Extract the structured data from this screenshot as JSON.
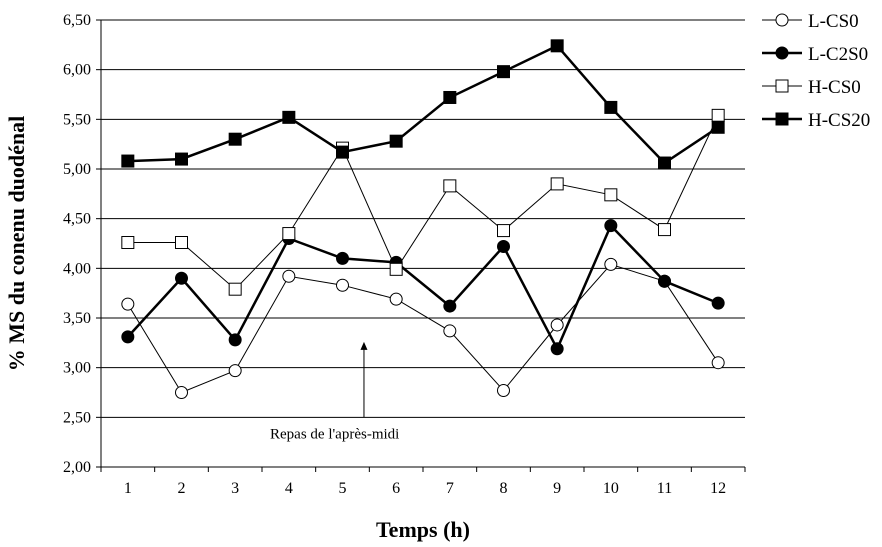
{
  "chart_data": {
    "type": "line",
    "xlabel": "Temps (h)",
    "ylabel": "% MS du conenu duodénal",
    "x": [
      1,
      2,
      3,
      4,
      5,
      6,
      7,
      8,
      9,
      10,
      11,
      12
    ],
    "x_tick_labels": [
      "1",
      "2",
      "3",
      "4",
      "5",
      "6",
      "7",
      "8",
      "9",
      "10",
      "11",
      "12"
    ],
    "ylim": [
      2.0,
      6.5
    ],
    "y_ticks": [
      2.0,
      2.5,
      3.0,
      3.5,
      4.0,
      4.5,
      5.0,
      5.5,
      6.0,
      6.5
    ],
    "y_tick_labels": [
      "2,00",
      "2,50",
      "3,00",
      "3,50",
      "4,00",
      "4,50",
      "5,00",
      "5,50",
      "6,00",
      "6,50"
    ],
    "grid": "horizontal",
    "legend_position": "right",
    "series": [
      {
        "name": "L-CS0",
        "marker": "open-circle",
        "color": "#000000",
        "values": [
          3.64,
          2.75,
          2.97,
          3.92,
          3.83,
          3.69,
          3.37,
          2.77,
          3.43,
          4.04,
          3.87,
          3.05
        ]
      },
      {
        "name": "L-C2S0",
        "marker": "filled-circle",
        "color": "#000000",
        "values": [
          3.31,
          3.9,
          3.28,
          4.3,
          4.1,
          4.06,
          3.62,
          4.22,
          3.19,
          4.43,
          3.87,
          3.65
        ]
      },
      {
        "name": "H-CS0",
        "marker": "open-square",
        "color": "#000000",
        "values": [
          4.26,
          4.26,
          3.79,
          4.35,
          5.21,
          3.99,
          4.83,
          4.38,
          4.85,
          4.74,
          4.39,
          5.54
        ]
      },
      {
        "name": "H-CS20",
        "marker": "filled-square",
        "color": "#000000",
        "values": [
          5.08,
          5.1,
          5.3,
          5.52,
          5.17,
          5.28,
          5.72,
          5.98,
          6.24,
          5.62,
          5.06,
          5.42
        ]
      }
    ],
    "annotation": {
      "text": "Repas de l'après-midi",
      "x": 5.4,
      "y_tip": 3.26,
      "y_tail": 2.5
    }
  }
}
